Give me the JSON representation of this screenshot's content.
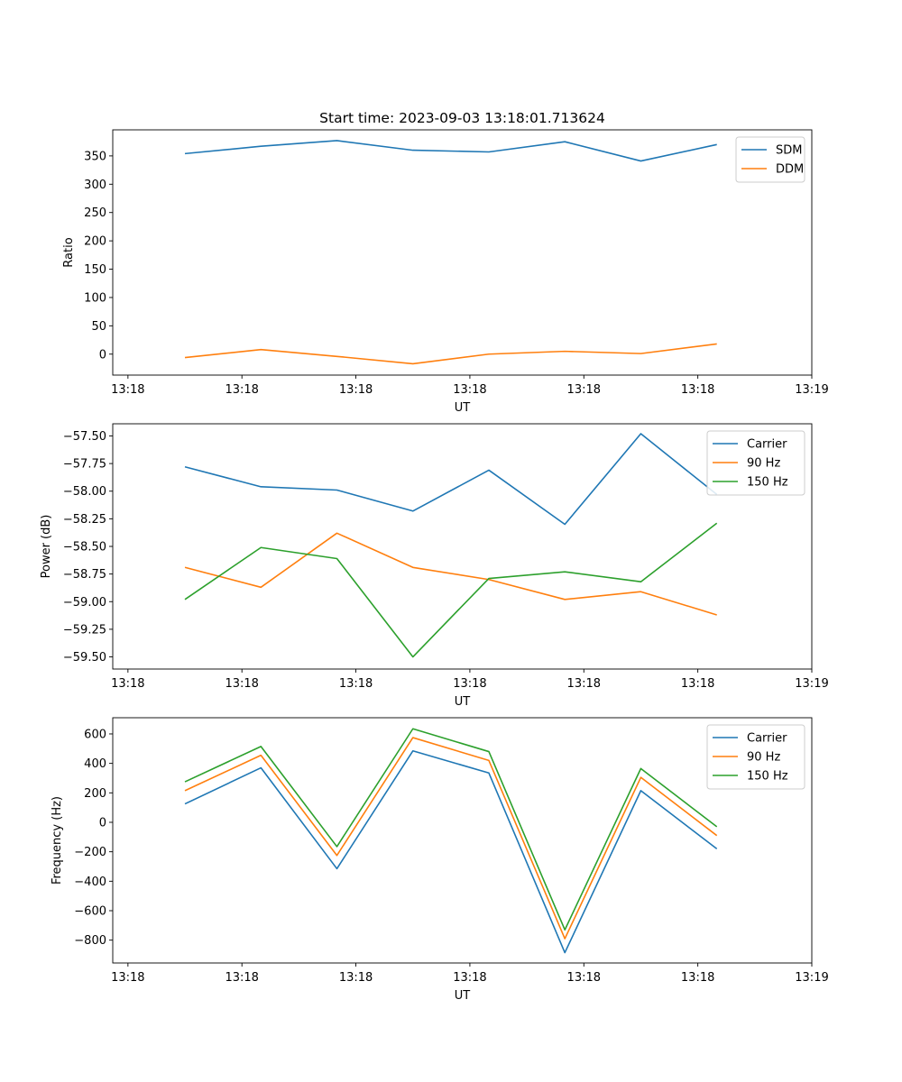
{
  "chart_data": [
    {
      "type": "line",
      "title": "Start time: 2023-09-03 13:18:01.713624",
      "xlabel": "UT",
      "ylabel": "Ratio",
      "x": [
        0.75,
        1.75,
        2.75,
        3.75,
        4.75,
        5.75,
        6.75,
        7.75
      ],
      "xlim": [
        -0.2,
        9.0
      ],
      "xticks": [
        0,
        1.5,
        3,
        4.5,
        6,
        7.5,
        9
      ],
      "xtick_labels": [
        "13:18",
        "13:18",
        "13:18",
        "13:18",
        "13:18",
        "13:18",
        "13:19"
      ],
      "ylim": [
        -37,
        396
      ],
      "yticks": [
        0,
        50,
        100,
        150,
        200,
        250,
        300,
        350
      ],
      "ytick_labels": [
        "0",
        "50",
        "100",
        "150",
        "200",
        "250",
        "300",
        "350"
      ],
      "legend": "top-right",
      "series": [
        {
          "name": "SDM",
          "color": "#1f77b4",
          "values": [
            354,
            367,
            377,
            360,
            357,
            375,
            341,
            370
          ]
        },
        {
          "name": "DDM",
          "color": "#ff7f0e",
          "values": [
            -6,
            8,
            -4,
            -17,
            0,
            5,
            1,
            18
          ]
        }
      ]
    },
    {
      "type": "line",
      "title": "",
      "xlabel": "UT",
      "ylabel": "Power (dB)",
      "x": [
        0.75,
        1.75,
        2.75,
        3.75,
        4.75,
        5.75,
        6.75,
        7.75
      ],
      "xlim": [
        -0.2,
        9.0
      ],
      "xticks": [
        0,
        1.5,
        3,
        4.5,
        6,
        7.5,
        9
      ],
      "xtick_labels": [
        "13:18",
        "13:18",
        "13:18",
        "13:18",
        "13:18",
        "13:18",
        "13:19"
      ],
      "ylim": [
        -59.61,
        -57.39
      ],
      "yticks": [
        -59.5,
        -59.25,
        -59.0,
        -58.75,
        -58.5,
        -58.25,
        -58.0,
        -57.75,
        -57.5
      ],
      "ytick_labels": [
        "−59.50",
        "−59.25",
        "−59.00",
        "−58.75",
        "−58.50",
        "−58.25",
        "−58.00",
        "−57.75",
        "−57.50"
      ],
      "legend": "top-right",
      "series": [
        {
          "name": "Carrier",
          "color": "#1f77b4",
          "values": [
            -57.78,
            -57.96,
            -57.99,
            -58.18,
            -57.81,
            -58.3,
            -57.48,
            -58.03
          ]
        },
        {
          "name": "90 Hz",
          "color": "#ff7f0e",
          "values": [
            -58.69,
            -58.87,
            -58.38,
            -58.69,
            -58.8,
            -58.98,
            -58.91,
            -59.12
          ]
        },
        {
          "name": "150 Hz",
          "color": "#2ca02c",
          "values": [
            -58.98,
            -58.51,
            -58.61,
            -59.5,
            -58.79,
            -58.73,
            -58.82,
            -58.29
          ]
        }
      ]
    },
    {
      "type": "line",
      "title": "",
      "xlabel": "UT",
      "ylabel": "Frequency (Hz)",
      "x": [
        0.75,
        1.75,
        2.75,
        3.75,
        4.75,
        5.75,
        6.75,
        7.75
      ],
      "xlim": [
        -0.2,
        9.0
      ],
      "xticks": [
        0,
        1.5,
        3,
        4.5,
        6,
        7.5,
        9
      ],
      "xtick_labels": [
        "13:18",
        "13:18",
        "13:18",
        "13:18",
        "13:18",
        "13:18",
        "13:19"
      ],
      "ylim": [
        -955,
        710
      ],
      "yticks": [
        -800,
        -600,
        -400,
        -200,
        0,
        200,
        400,
        600
      ],
      "ytick_labels": [
        "−800",
        "−600",
        "−400",
        "−200",
        "0",
        "200",
        "400",
        "600"
      ],
      "legend": "top-right",
      "series": [
        {
          "name": "Carrier",
          "color": "#1f77b4",
          "values": [
            125,
            370,
            -315,
            485,
            335,
            -885,
            215,
            -180
          ]
        },
        {
          "name": "90 Hz",
          "color": "#ff7f0e",
          "values": [
            215,
            455,
            -225,
            575,
            420,
            -790,
            305,
            -90
          ]
        },
        {
          "name": "150 Hz",
          "color": "#2ca02c",
          "values": [
            275,
            515,
            -165,
            635,
            480,
            -730,
            365,
            -30
          ]
        }
      ]
    }
  ]
}
